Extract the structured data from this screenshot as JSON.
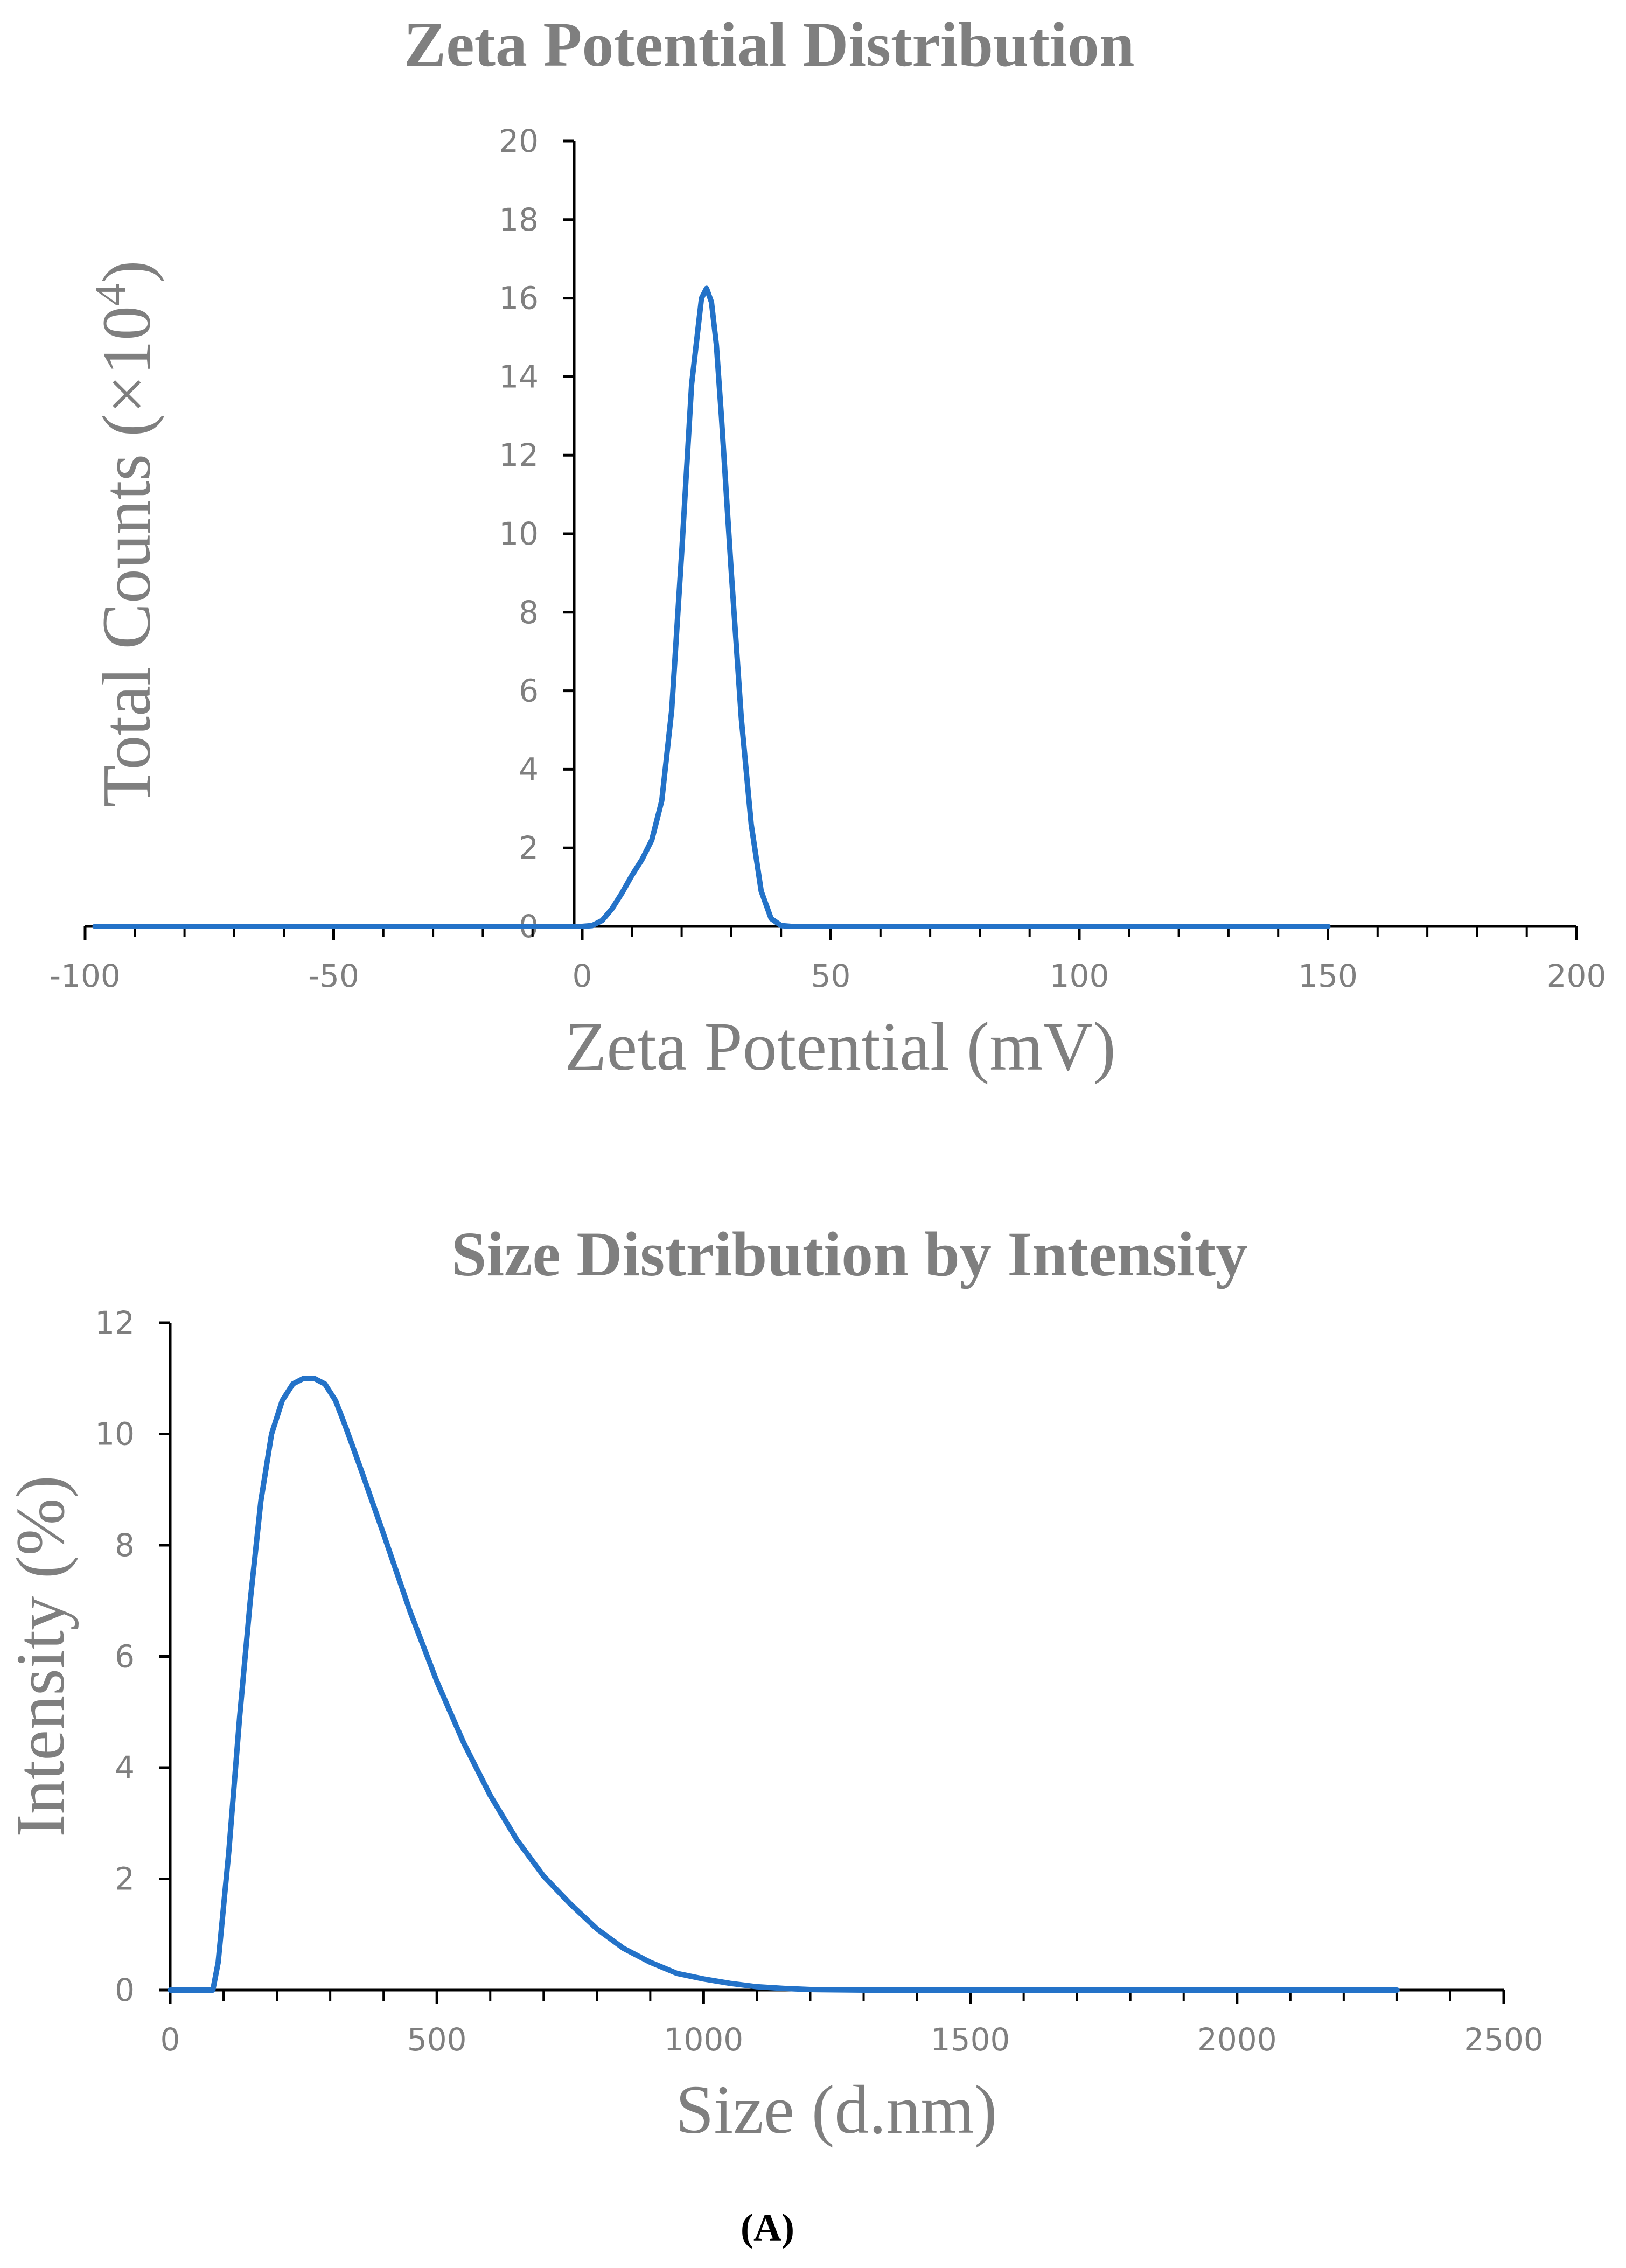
{
  "figure_label": "(A)",
  "colors": {
    "series": "#2372c8",
    "axis": "#000000",
    "text": "#7f7f7f"
  },
  "chart_data": [
    {
      "type": "line",
      "title": "Zeta Potential Distribution",
      "xlabel": "Zeta Potential (mV)",
      "ylabel_main": "Total Counts (×10",
      "ylabel_sup": "4",
      "ylabel_close": ")",
      "xlim": [
        -100,
        200
      ],
      "ylim": [
        0,
        20
      ],
      "xticks": [
        -100,
        -50,
        0,
        50,
        100,
        150,
        200
      ],
      "xminor_step": 10,
      "yticks": [
        0,
        2,
        4,
        6,
        8,
        10,
        12,
        14,
        16,
        18,
        20
      ],
      "series": [
        {
          "name": "Zeta potential",
          "x": [
            -98,
            -50,
            0,
            2,
            4,
            6,
            8,
            10,
            12,
            14,
            16,
            18,
            20,
            22,
            24,
            25,
            26,
            27,
            28,
            30,
            32,
            34,
            36,
            38,
            40,
            42,
            50,
            100,
            150
          ],
          "y": [
            0,
            0,
            0,
            0.02,
            0.15,
            0.45,
            0.85,
            1.3,
            1.7,
            2.2,
            3.2,
            5.5,
            9.5,
            13.8,
            16.0,
            16.25,
            15.9,
            14.8,
            13.0,
            9.0,
            5.3,
            2.6,
            0.9,
            0.2,
            0.02,
            0,
            0,
            0,
            0
          ]
        }
      ]
    },
    {
      "type": "line",
      "title": "Size Distribution by Intensity",
      "xlabel": "Size (d.nm)",
      "ylabel": "Intensity (%)",
      "xlim": [
        0,
        2500
      ],
      "ylim": [
        0,
        12
      ],
      "xticks": [
        0,
        500,
        1000,
        1500,
        2000,
        2500
      ],
      "xminor_step": 100,
      "yticks": [
        0,
        2,
        4,
        6,
        8,
        10,
        12
      ],
      "series": [
        {
          "name": "Intensity",
          "x": [
            0,
            80,
            90,
            110,
            130,
            150,
            170,
            190,
            210,
            230,
            250,
            270,
            290,
            310,
            330,
            360,
            400,
            450,
            500,
            550,
            600,
            650,
            700,
            750,
            800,
            850,
            900,
            950,
            1000,
            1050,
            1100,
            1150,
            1200,
            1300,
            1500,
            2000,
            2300
          ],
          "y": [
            0,
            0,
            0.5,
            2.5,
            4.9,
            7.0,
            8.8,
            10.0,
            10.6,
            10.9,
            11.0,
            11.0,
            10.9,
            10.6,
            10.1,
            9.3,
            8.2,
            6.8,
            5.55,
            4.45,
            3.5,
            2.7,
            2.05,
            1.55,
            1.1,
            0.75,
            0.5,
            0.3,
            0.2,
            0.12,
            0.06,
            0.03,
            0.01,
            0,
            0,
            0,
            0
          ]
        }
      ]
    }
  ]
}
